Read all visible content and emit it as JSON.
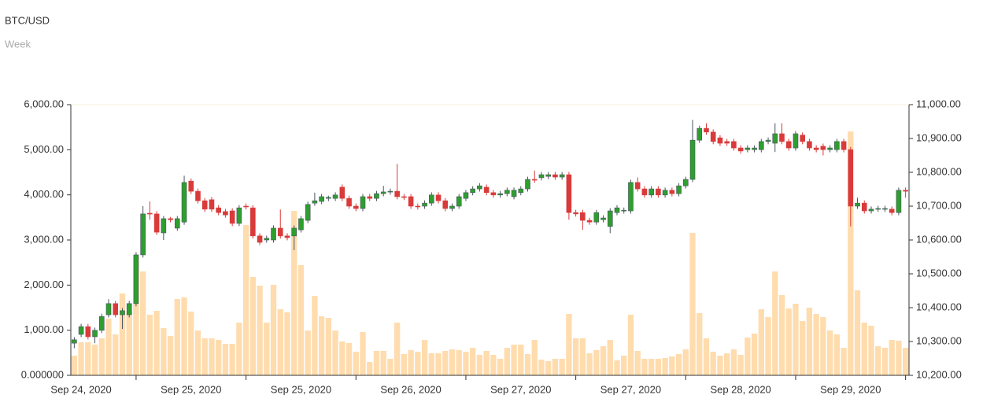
{
  "chart_data": {
    "type": "candlestick",
    "title": "BTC/USD",
    "subtitle": "Week",
    "categories": [
      null,
      "Sep 24, 2020",
      null,
      null,
      null,
      null,
      null,
      null,
      null,
      null,
      null,
      null,
      null,
      null,
      null,
      null,
      null,
      "Sep 25, 2020",
      null,
      null,
      null,
      null,
      null,
      null,
      null,
      null,
      null,
      null,
      null,
      null,
      null,
      null,
      null,
      "Sep 25, 2020",
      null,
      null,
      null,
      null,
      null,
      null,
      null,
      null,
      null,
      null,
      null,
      null,
      null,
      null,
      null,
      "Sep 26, 2020",
      null,
      null,
      null,
      null,
      null,
      null,
      null,
      null,
      null,
      null,
      null,
      null,
      null,
      null,
      null,
      "Sep 27, 2020",
      null,
      null,
      null,
      null,
      null,
      null,
      null,
      null,
      null,
      null,
      null,
      null,
      null,
      null,
      null,
      "Sep 27, 2020",
      null,
      null,
      null,
      null,
      null,
      null,
      null,
      null,
      null,
      null,
      null,
      null,
      null,
      null,
      null,
      "Sep 28, 2020",
      null,
      null,
      null,
      null,
      null,
      null,
      null,
      null,
      null,
      null,
      null,
      null,
      null,
      null,
      null,
      "Sep 29, 2020",
      null,
      null,
      null,
      null,
      null,
      null,
      null,
      null
    ],
    "open": [
      10295,
      10321,
      10344,
      10314,
      10333,
      10379,
      10412,
      10379,
      10379,
      10412,
      10556,
      10679,
      10677,
      10621,
      10663,
      10635,
      10653,
      10774,
      10744,
      10716,
      10719,
      10695,
      10684,
      10686,
      10649,
      10700,
      10695,
      10612,
      10600,
      10600,
      10635,
      10612,
      10612,
      10630,
      10658,
      10709,
      10714,
      10723,
      10723,
      10756,
      10723,
      10700,
      10693,
      10728,
      10723,
      10737,
      10742,
      10744,
      10728,
      10728,
      10700,
      10700,
      10709,
      10733,
      10716,
      10693,
      10700,
      10723,
      10740,
      10751,
      10756,
      10740,
      10733,
      10737,
      10728,
      10740,
      10751,
      10779,
      10784,
      10788,
      10793,
      10786,
      10793,
      10681,
      10681,
      10658,
      10653,
      10660,
      10640,
      10681,
      10686,
      10686,
      10770,
      10751,
      10733,
      10751,
      10733,
      10747,
      10737,
      10760,
      10779,
      10895,
      10930,
      10919,
      10902,
      10891,
      10891,
      10872,
      10867,
      10867,
      10867,
      10891,
      10886,
      10914,
      10891,
      10872,
      10910,
      10891,
      10872,
      10877,
      10867,
      10867,
      10891,
      10867,
      10700,
      10709,
      10686,
      10691,
      10691,
      10691,
      10681,
      10747
    ],
    "high": [
      10313,
      10352,
      10352,
      10341,
      10382,
      10425,
      10420,
      10399,
      10420,
      10564,
      10700,
      10714,
      10685,
      10671,
      10668,
      10671,
      10790,
      10782,
      10752,
      10724,
      10727,
      10703,
      10692,
      10694,
      10703,
      10708,
      10703,
      10620,
      10613,
      10643,
      10690,
      10620,
      10643,
      10671,
      10713,
      10740,
      10736,
      10731,
      10741,
      10764,
      10731,
      10708,
      10736,
      10736,
      10745,
      10760,
      10752,
      10825,
      10736,
      10736,
      10708,
      10717,
      10741,
      10741,
      10724,
      10708,
      10736,
      10748,
      10759,
      10768,
      10764,
      10748,
      10745,
      10755,
      10755,
      10759,
      10787,
      10805,
      10801,
      10801,
      10801,
      10801,
      10801,
      10689,
      10689,
      10666,
      10689,
      10673,
      10694,
      10703,
      10696,
      10778,
      10785,
      10759,
      10759,
      10759,
      10755,
      10755,
      10768,
      10787,
      10955,
      10938,
      10945,
      10927,
      10910,
      10899,
      10899,
      10880,
      10880,
      10880,
      10899,
      10903,
      10945,
      10945,
      10899,
      10922,
      10918,
      10899,
      10880,
      10885,
      10880,
      10899,
      10899,
      10875,
      10725,
      10717,
      10699,
      10701,
      10701,
      10699,
      10755,
      10755
    ],
    "low": [
      10280,
      10313,
      10306,
      10295,
      10325,
      10371,
      10371,
      10337,
      10371,
      10404,
      10548,
      10660,
      10615,
      10600,
      10652,
      10627,
      10645,
      10736,
      10708,
      10683,
      10683,
      10673,
      10666,
      10641,
      10641,
      10690,
      10604,
      10585,
      10592,
      10592,
      10604,
      10599,
      10570,
      10622,
      10650,
      10701,
      10706,
      10715,
      10715,
      10715,
      10692,
      10685,
      10685,
      10715,
      10715,
      10729,
      10734,
      10720,
      10718,
      10692,
      10690,
      10692,
      10701,
      10708,
      10685,
      10685,
      10692,
      10715,
      10732,
      10743,
      10732,
      10725,
      10725,
      10729,
      10720,
      10732,
      10743,
      10769,
      10776,
      10780,
      10778,
      10778,
      10660,
      10669,
      10630,
      10645,
      10645,
      10652,
      10620,
      10673,
      10678,
      10678,
      10743,
      10725,
      10725,
      10725,
      10725,
      10729,
      10729,
      10752,
      10771,
      10887,
      10911,
      10883,
      10878,
      10878,
      10864,
      10855,
      10859,
      10859,
      10859,
      10883,
      10860,
      10883,
      10864,
      10864,
      10883,
      10864,
      10859,
      10850,
      10859,
      10859,
      10859,
      10640,
      10692,
      10678,
      10678,
      10683,
      10683,
      10673,
      10673,
      10725
    ],
    "close": [
      10305,
      10344,
      10314,
      10333,
      10374,
      10412,
      10379,
      10391,
      10412,
      10556,
      10677,
      10677,
      10623,
      10663,
      10660,
      10663,
      10770,
      10744,
      10716,
      10691,
      10691,
      10681,
      10674,
      10649,
      10695,
      10698,
      10612,
      10593,
      10605,
      10635,
      10612,
      10607,
      10635,
      10663,
      10705,
      10716,
      10728,
      10726,
      10733,
      10723,
      10700,
      10693,
      10728,
      10723,
      10737,
      10742,
      10744,
      10728,
      10726,
      10700,
      10698,
      10709,
      10733,
      10716,
      10693,
      10700,
      10728,
      10740,
      10751,
      10760,
      10740,
      10733,
      10737,
      10747,
      10747,
      10751,
      10779,
      10777,
      10793,
      10793,
      10786,
      10793,
      10681,
      10677,
      10658,
      10653,
      10681,
      10665,
      10686,
      10695,
      10688,
      10770,
      10751,
      10733,
      10751,
      10733,
      10747,
      10737,
      10760,
      10779,
      10895,
      10930,
      10919,
      10891,
      10886,
      10886,
      10872,
      10863,
      10872,
      10872,
      10891,
      10895,
      10914,
      10891,
      10872,
      10914,
      10891,
      10872,
      10867,
      10867,
      10872,
      10891,
      10867,
      10700,
      10709,
      10686,
      10691,
      10693,
      10693,
      10681,
      10747,
      10744
    ],
    "volume": [
      436,
      732,
      732,
      680,
      820,
      1256,
      907,
      1814,
      1430,
      2651,
      2302,
      1343,
      1430,
      1046,
      872,
      1692,
      1727,
      1413,
      994,
      820,
      820,
      785,
      698,
      698,
      1168,
      3331,
      2180,
      1988,
      1168,
      2006,
      1465,
      1395,
      3645,
      2442,
      994,
      1761,
      1308,
      1273,
      994,
      750,
      715,
      523,
      959,
      296,
      541,
      541,
      366,
      1168,
      471,
      558,
      523,
      785,
      488,
      488,
      541,
      576,
      558,
      523,
      610,
      453,
      541,
      453,
      366,
      610,
      680,
      680,
      471,
      785,
      349,
      314,
      366,
      366,
      1360,
      820,
      820,
      488,
      558,
      645,
      785,
      331,
      436,
      1343,
      541,
      366,
      366,
      366,
      384,
      419,
      471,
      576,
      3157,
      1378,
      820,
      523,
      436,
      488,
      576,
      453,
      837,
      924,
      1465,
      1290,
      2302,
      1779,
      1482,
      1587,
      1203,
      1500,
      1360,
      1290,
      994,
      907,
      610,
      5406,
      1884,
      1168,
      1099,
      645,
      610,
      785,
      767,
      610
    ],
    "up_color": "#2e9e2e",
    "down_color": "#d93a3a",
    "wick_color": "#4a5560",
    "volume_color": "#ffdcae",
    "ylim": [
      0,
      6000
    ],
    "yticks": [
      {
        "value": 0,
        "label": "0.000000"
      },
      {
        "value": 1000,
        "label": "1,000.00"
      },
      {
        "value": 2000,
        "label": "2,000.00"
      },
      {
        "value": 3000,
        "label": "3,000.00"
      },
      {
        "value": 4000,
        "label": "4,000.00"
      },
      {
        "value": 5000,
        "label": "5,000.00"
      },
      {
        "value": 6000,
        "label": "6,000.00"
      }
    ],
    "y2lim": [
      10200,
      11000
    ],
    "y2ticks": [
      {
        "value": 10200,
        "label": "10,200.00"
      },
      {
        "value": 10300,
        "label": "10,300.00"
      },
      {
        "value": 10400,
        "label": "10,400.00"
      },
      {
        "value": 10500,
        "label": "10,500.00"
      },
      {
        "value": 10600,
        "label": "10,600.00"
      },
      {
        "value": 10700,
        "label": "10,700.00"
      },
      {
        "value": 10800,
        "label": "10,800.00"
      },
      {
        "value": 10900,
        "label": "10,900.00"
      },
      {
        "value": 11000,
        "label": "11,000.00"
      }
    ]
  }
}
